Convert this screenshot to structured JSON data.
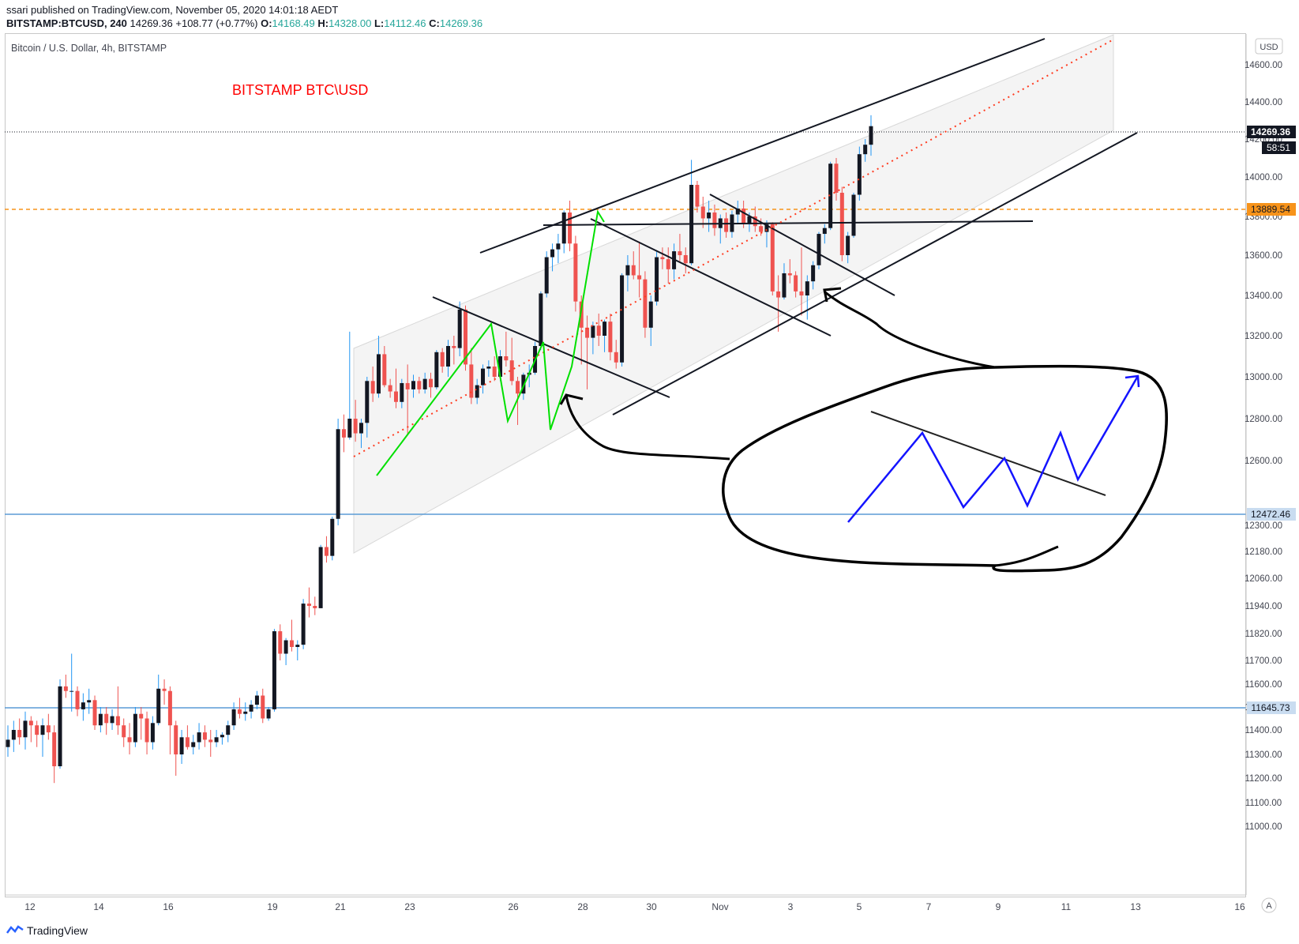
{
  "header": {
    "publisher_line": "ssari published on TradingView.com, November 05, 2020 14:01:18 AEDT",
    "symbol_interval": "BITSTAMP:BTCUSD, 240",
    "last_price": "14269.36",
    "change": "+108.77 (+0.77%)",
    "open_label": "O:",
    "open": "14168.49",
    "high_label": "H:",
    "high": "14328.00",
    "low_label": "L:",
    "low": "14112.46",
    "close_label": "C:",
    "close": "14269.36"
  },
  "chart_title": "Bitcoin / U.S. Dollar, 4h, BITSTAMP",
  "annotation_title": "BITSTAMP BTC\\USD",
  "currency_button": "USD",
  "auto_button": "A",
  "footer_brand": "TradingView",
  "price_tags": {
    "last": "14269.36",
    "countdown": "58:51",
    "orange_level": "13889.54",
    "blue_level_1": "12472.46",
    "blue_level_2": "11645.73"
  },
  "colors": {
    "up": "#131722",
    "down": "#ef5350",
    "wick_up": "#2196f3",
    "orange": "#f7931a",
    "blue_line": "#5b9bd5",
    "annotation_red": "#ff0000",
    "zigzag_green": "#00e000",
    "zigzag_blue": "#1414ff"
  },
  "chart_data": {
    "type": "candlestick",
    "y_ticks": [
      "14600.00",
      "14400.00",
      "14200.00",
      "14000.00",
      "13800.00",
      "13600.00",
      "13400.00",
      "13200.00",
      "13000.00",
      "12800.00",
      "12600.00",
      "12300.00",
      "12180.00",
      "12060.00",
      "11940.00",
      "11820.00",
      "11700.00",
      "11600.00",
      "11500.00",
      "11400.00",
      "11300.00",
      "11200.00",
      "11100.00",
      "11000.00"
    ],
    "x_ticks": [
      "12",
      "14",
      "16",
      "19",
      "21",
      "23",
      "26",
      "28",
      "30",
      "Nov",
      "3",
      "5",
      "7",
      "9",
      "11",
      "13",
      "16"
    ],
    "horizontal_levels": [
      13889.54,
      12472.46,
      11645.73
    ],
    "last_price": 14269.36,
    "ohlc": [
      {
        "o": 11330,
        "h": 11420,
        "l": 11290,
        "c": 11360
      },
      {
        "o": 11360,
        "h": 11440,
        "l": 11310,
        "c": 11400
      },
      {
        "o": 11400,
        "h": 11450,
        "l": 11340,
        "c": 11370
      },
      {
        "o": 11370,
        "h": 11480,
        "l": 11320,
        "c": 11440
      },
      {
        "o": 11440,
        "h": 11460,
        "l": 11350,
        "c": 11420
      },
      {
        "o": 11420,
        "h": 11440,
        "l": 11330,
        "c": 11380
      },
      {
        "o": 11380,
        "h": 11450,
        "l": 11290,
        "c": 11420
      },
      {
        "o": 11420,
        "h": 11470,
        "l": 11360,
        "c": 11390
      },
      {
        "o": 11390,
        "h": 11420,
        "l": 11180,
        "c": 11250
      },
      {
        "o": 11250,
        "h": 11620,
        "l": 11240,
        "c": 11590
      },
      {
        "o": 11590,
        "h": 11640,
        "l": 11540,
        "c": 11570
      },
      {
        "o": 11570,
        "h": 11730,
        "l": 11480,
        "c": 11570
      },
      {
        "o": 11570,
        "h": 11590,
        "l": 11460,
        "c": 11490
      },
      {
        "o": 11490,
        "h": 11560,
        "l": 11440,
        "c": 11520
      },
      {
        "o": 11520,
        "h": 11580,
        "l": 11470,
        "c": 11530
      },
      {
        "o": 11530,
        "h": 11550,
        "l": 11400,
        "c": 11420
      },
      {
        "o": 11420,
        "h": 11500,
        "l": 11390,
        "c": 11470
      },
      {
        "o": 11470,
        "h": 11500,
        "l": 11380,
        "c": 11430
      },
      {
        "o": 11430,
        "h": 11490,
        "l": 11400,
        "c": 11460
      },
      {
        "o": 11460,
        "h": 11590,
        "l": 11380,
        "c": 11420
      },
      {
        "o": 11420,
        "h": 11450,
        "l": 11330,
        "c": 11370
      },
      {
        "o": 11370,
        "h": 11430,
        "l": 11300,
        "c": 11350
      },
      {
        "o": 11350,
        "h": 11500,
        "l": 11330,
        "c": 11470
      },
      {
        "o": 11470,
        "h": 11500,
        "l": 11360,
        "c": 11450
      },
      {
        "o": 11450,
        "h": 11480,
        "l": 11300,
        "c": 11350
      },
      {
        "o": 11350,
        "h": 11460,
        "l": 11320,
        "c": 11430
      },
      {
        "o": 11430,
        "h": 11640,
        "l": 11420,
        "c": 11580
      },
      {
        "o": 11580,
        "h": 11620,
        "l": 11510,
        "c": 11570
      },
      {
        "o": 11570,
        "h": 11590,
        "l": 11300,
        "c": 11420
      },
      {
        "o": 11420,
        "h": 11440,
        "l": 11210,
        "c": 11300
      },
      {
        "o": 11300,
        "h": 11400,
        "l": 11260,
        "c": 11370
      },
      {
        "o": 11370,
        "h": 11420,
        "l": 11320,
        "c": 11330
      },
      {
        "o": 11330,
        "h": 11380,
        "l": 11300,
        "c": 11350
      },
      {
        "o": 11350,
        "h": 11430,
        "l": 11320,
        "c": 11390
      },
      {
        "o": 11390,
        "h": 11420,
        "l": 11330,
        "c": 11360
      },
      {
        "o": 11360,
        "h": 11400,
        "l": 11290,
        "c": 11350
      },
      {
        "o": 11350,
        "h": 11400,
        "l": 11330,
        "c": 11370
      },
      {
        "o": 11370,
        "h": 11390,
        "l": 11340,
        "c": 11380
      },
      {
        "o": 11380,
        "h": 11440,
        "l": 11350,
        "c": 11420
      },
      {
        "o": 11420,
        "h": 11520,
        "l": 11400,
        "c": 11490
      },
      {
        "o": 11490,
        "h": 11540,
        "l": 11450,
        "c": 11470
      },
      {
        "o": 11470,
        "h": 11520,
        "l": 11440,
        "c": 11480
      },
      {
        "o": 11480,
        "h": 11530,
        "l": 11450,
        "c": 11510
      },
      {
        "o": 11510,
        "h": 11570,
        "l": 11490,
        "c": 11550
      },
      {
        "o": 11550,
        "h": 11580,
        "l": 11430,
        "c": 11450
      },
      {
        "o": 11450,
        "h": 11500,
        "l": 11440,
        "c": 11490
      },
      {
        "o": 11490,
        "h": 11840,
        "l": 11480,
        "c": 11830
      },
      {
        "o": 11830,
        "h": 11860,
        "l": 11700,
        "c": 11730
      },
      {
        "o": 11730,
        "h": 11800,
        "l": 11680,
        "c": 11790
      },
      {
        "o": 11790,
        "h": 11880,
        "l": 11740,
        "c": 11760
      },
      {
        "o": 11760,
        "h": 11790,
        "l": 11700,
        "c": 11770
      },
      {
        "o": 11770,
        "h": 11970,
        "l": 11750,
        "c": 11950
      },
      {
        "o": 11950,
        "h": 12020,
        "l": 11890,
        "c": 11940
      },
      {
        "o": 11940,
        "h": 11980,
        "l": 11900,
        "c": 11930
      },
      {
        "o": 11930,
        "h": 12210,
        "l": 11930,
        "c": 12200
      },
      {
        "o": 12200,
        "h": 12250,
        "l": 12130,
        "c": 12160
      },
      {
        "o": 12160,
        "h": 12340,
        "l": 12140,
        "c": 12330
      },
      {
        "o": 12330,
        "h": 12800,
        "l": 12300,
        "c": 12750
      },
      {
        "o": 12750,
        "h": 12820,
        "l": 12640,
        "c": 12710
      },
      {
        "o": 12710,
        "h": 13220,
        "l": 12700,
        "c": 12800
      },
      {
        "o": 12800,
        "h": 12890,
        "l": 12690,
        "c": 12730
      },
      {
        "o": 12730,
        "h": 12800,
        "l": 12660,
        "c": 12780
      },
      {
        "o": 12780,
        "h": 13000,
        "l": 12710,
        "c": 12980
      },
      {
        "o": 12980,
        "h": 13050,
        "l": 12880,
        "c": 12920
      },
      {
        "o": 12920,
        "h": 13200,
        "l": 12900,
        "c": 13110
      },
      {
        "o": 13110,
        "h": 13150,
        "l": 12950,
        "c": 12960
      },
      {
        "o": 12960,
        "h": 12990,
        "l": 12900,
        "c": 12930
      },
      {
        "o": 12930,
        "h": 13040,
        "l": 12850,
        "c": 12880
      },
      {
        "o": 12880,
        "h": 12990,
        "l": 12850,
        "c": 12970
      },
      {
        "o": 12970,
        "h": 13060,
        "l": 12720,
        "c": 12940
      },
      {
        "o": 12940,
        "h": 13010,
        "l": 12900,
        "c": 12980
      },
      {
        "o": 12980,
        "h": 13000,
        "l": 12920,
        "c": 12940
      },
      {
        "o": 12940,
        "h": 13020,
        "l": 12920,
        "c": 12990
      },
      {
        "o": 12990,
        "h": 13020,
        "l": 12900,
        "c": 12950
      },
      {
        "o": 12950,
        "h": 13130,
        "l": 12940,
        "c": 13120
      },
      {
        "o": 13120,
        "h": 13140,
        "l": 13020,
        "c": 13050
      },
      {
        "o": 13050,
        "h": 13180,
        "l": 13000,
        "c": 13150
      },
      {
        "o": 13150,
        "h": 13200,
        "l": 13060,
        "c": 13140
      },
      {
        "o": 13140,
        "h": 13370,
        "l": 13100,
        "c": 13330
      },
      {
        "o": 13330,
        "h": 13350,
        "l": 13030,
        "c": 13060
      },
      {
        "o": 13060,
        "h": 13140,
        "l": 12870,
        "c": 12900
      },
      {
        "o": 12900,
        "h": 12990,
        "l": 12870,
        "c": 12960
      },
      {
        "o": 12960,
        "h": 13060,
        "l": 12920,
        "c": 13040
      },
      {
        "o": 13040,
        "h": 13080,
        "l": 13000,
        "c": 13050
      },
      {
        "o": 13050,
        "h": 13100,
        "l": 12980,
        "c": 13000
      },
      {
        "o": 13000,
        "h": 13130,
        "l": 12980,
        "c": 13100
      },
      {
        "o": 13100,
        "h": 13220,
        "l": 13050,
        "c": 13080
      },
      {
        "o": 13080,
        "h": 13190,
        "l": 12960,
        "c": 12980
      },
      {
        "o": 12980,
        "h": 13000,
        "l": 12770,
        "c": 12920
      },
      {
        "o": 12920,
        "h": 13020,
        "l": 12890,
        "c": 13010
      },
      {
        "o": 13010,
        "h": 13060,
        "l": 12950,
        "c": 13020
      },
      {
        "o": 13020,
        "h": 13170,
        "l": 13010,
        "c": 13150
      },
      {
        "o": 13150,
        "h": 13420,
        "l": 13130,
        "c": 13410
      },
      {
        "o": 13410,
        "h": 13620,
        "l": 13390,
        "c": 13590
      },
      {
        "o": 13590,
        "h": 13660,
        "l": 13520,
        "c": 13630
      },
      {
        "o": 13630,
        "h": 13710,
        "l": 13560,
        "c": 13660
      },
      {
        "o": 13660,
        "h": 13830,
        "l": 13610,
        "c": 13820
      },
      {
        "o": 13820,
        "h": 13880,
        "l": 13620,
        "c": 13660
      },
      {
        "o": 13660,
        "h": 13700,
        "l": 13320,
        "c": 13370
      },
      {
        "o": 13370,
        "h": 13400,
        "l": 13060,
        "c": 13240
      },
      {
        "o": 13240,
        "h": 13300,
        "l": 12940,
        "c": 13190
      },
      {
        "o": 13190,
        "h": 13270,
        "l": 13110,
        "c": 13250
      },
      {
        "o": 13250,
        "h": 13310,
        "l": 13150,
        "c": 13200
      },
      {
        "o": 13200,
        "h": 13280,
        "l": 13120,
        "c": 13270
      },
      {
        "o": 13270,
        "h": 13310,
        "l": 13080,
        "c": 13120
      },
      {
        "o": 13120,
        "h": 13180,
        "l": 13040,
        "c": 13070
      },
      {
        "o": 13070,
        "h": 13510,
        "l": 13050,
        "c": 13500
      },
      {
        "o": 13500,
        "h": 13600,
        "l": 13420,
        "c": 13550
      },
      {
        "o": 13550,
        "h": 13620,
        "l": 13480,
        "c": 13500
      },
      {
        "o": 13500,
        "h": 13670,
        "l": 13390,
        "c": 13480
      },
      {
        "o": 13480,
        "h": 13520,
        "l": 13190,
        "c": 13240
      },
      {
        "o": 13240,
        "h": 13400,
        "l": 13150,
        "c": 13370
      },
      {
        "o": 13370,
        "h": 13620,
        "l": 13350,
        "c": 13590
      },
      {
        "o": 13590,
        "h": 13640,
        "l": 13530,
        "c": 13580
      },
      {
        "o": 13580,
        "h": 13640,
        "l": 13460,
        "c": 13530
      },
      {
        "o": 13530,
        "h": 13660,
        "l": 13480,
        "c": 13620
      },
      {
        "o": 13620,
        "h": 13710,
        "l": 13570,
        "c": 13600
      },
      {
        "o": 13600,
        "h": 13640,
        "l": 13510,
        "c": 13560
      },
      {
        "o": 13560,
        "h": 14090,
        "l": 13550,
        "c": 13960
      },
      {
        "o": 13960,
        "h": 13980,
        "l": 13820,
        "c": 13850
      },
      {
        "o": 13850,
        "h": 13900,
        "l": 13740,
        "c": 13790
      },
      {
        "o": 13790,
        "h": 13880,
        "l": 13720,
        "c": 13820
      },
      {
        "o": 13820,
        "h": 13860,
        "l": 13700,
        "c": 13740
      },
      {
        "o": 13740,
        "h": 13810,
        "l": 13660,
        "c": 13790
      },
      {
        "o": 13790,
        "h": 13820,
        "l": 13690,
        "c": 13720
      },
      {
        "o": 13720,
        "h": 13830,
        "l": 13690,
        "c": 13810
      },
      {
        "o": 13810,
        "h": 13880,
        "l": 13760,
        "c": 13840
      },
      {
        "o": 13840,
        "h": 13880,
        "l": 13740,
        "c": 13760
      },
      {
        "o": 13760,
        "h": 13820,
        "l": 13720,
        "c": 13800
      },
      {
        "o": 13800,
        "h": 13850,
        "l": 13720,
        "c": 13750
      },
      {
        "o": 13750,
        "h": 13790,
        "l": 13700,
        "c": 13720
      },
      {
        "o": 13720,
        "h": 13780,
        "l": 13640,
        "c": 13760
      },
      {
        "o": 13760,
        "h": 13770,
        "l": 13400,
        "c": 13420
      },
      {
        "o": 13420,
        "h": 13500,
        "l": 13220,
        "c": 13390
      },
      {
        "o": 13390,
        "h": 13560,
        "l": 13380,
        "c": 13510
      },
      {
        "o": 13510,
        "h": 13580,
        "l": 13460,
        "c": 13500
      },
      {
        "o": 13500,
        "h": 13520,
        "l": 13390,
        "c": 13420
      },
      {
        "o": 13420,
        "h": 13640,
        "l": 13300,
        "c": 13400
      },
      {
        "o": 13400,
        "h": 13500,
        "l": 13280,
        "c": 13470
      },
      {
        "o": 13470,
        "h": 13570,
        "l": 13430,
        "c": 13550
      },
      {
        "o": 13550,
        "h": 13720,
        "l": 13530,
        "c": 13710
      },
      {
        "o": 13710,
        "h": 13760,
        "l": 13660,
        "c": 13740
      },
      {
        "o": 13740,
        "h": 14080,
        "l": 13730,
        "c": 14070
      },
      {
        "o": 14070,
        "h": 14100,
        "l": 13880,
        "c": 13920
      },
      {
        "o": 13920,
        "h": 13950,
        "l": 13570,
        "c": 13600
      },
      {
        "o": 13600,
        "h": 13720,
        "l": 13560,
        "c": 13700
      },
      {
        "o": 13700,
        "h": 13920,
        "l": 13690,
        "c": 13910
      },
      {
        "o": 13910,
        "h": 14160,
        "l": 13880,
        "c": 14120
      },
      {
        "o": 14120,
        "h": 14200,
        "l": 14080,
        "c": 14170
      },
      {
        "o": 14170,
        "h": 14328,
        "l": 14112,
        "c": 14269.36
      }
    ]
  }
}
